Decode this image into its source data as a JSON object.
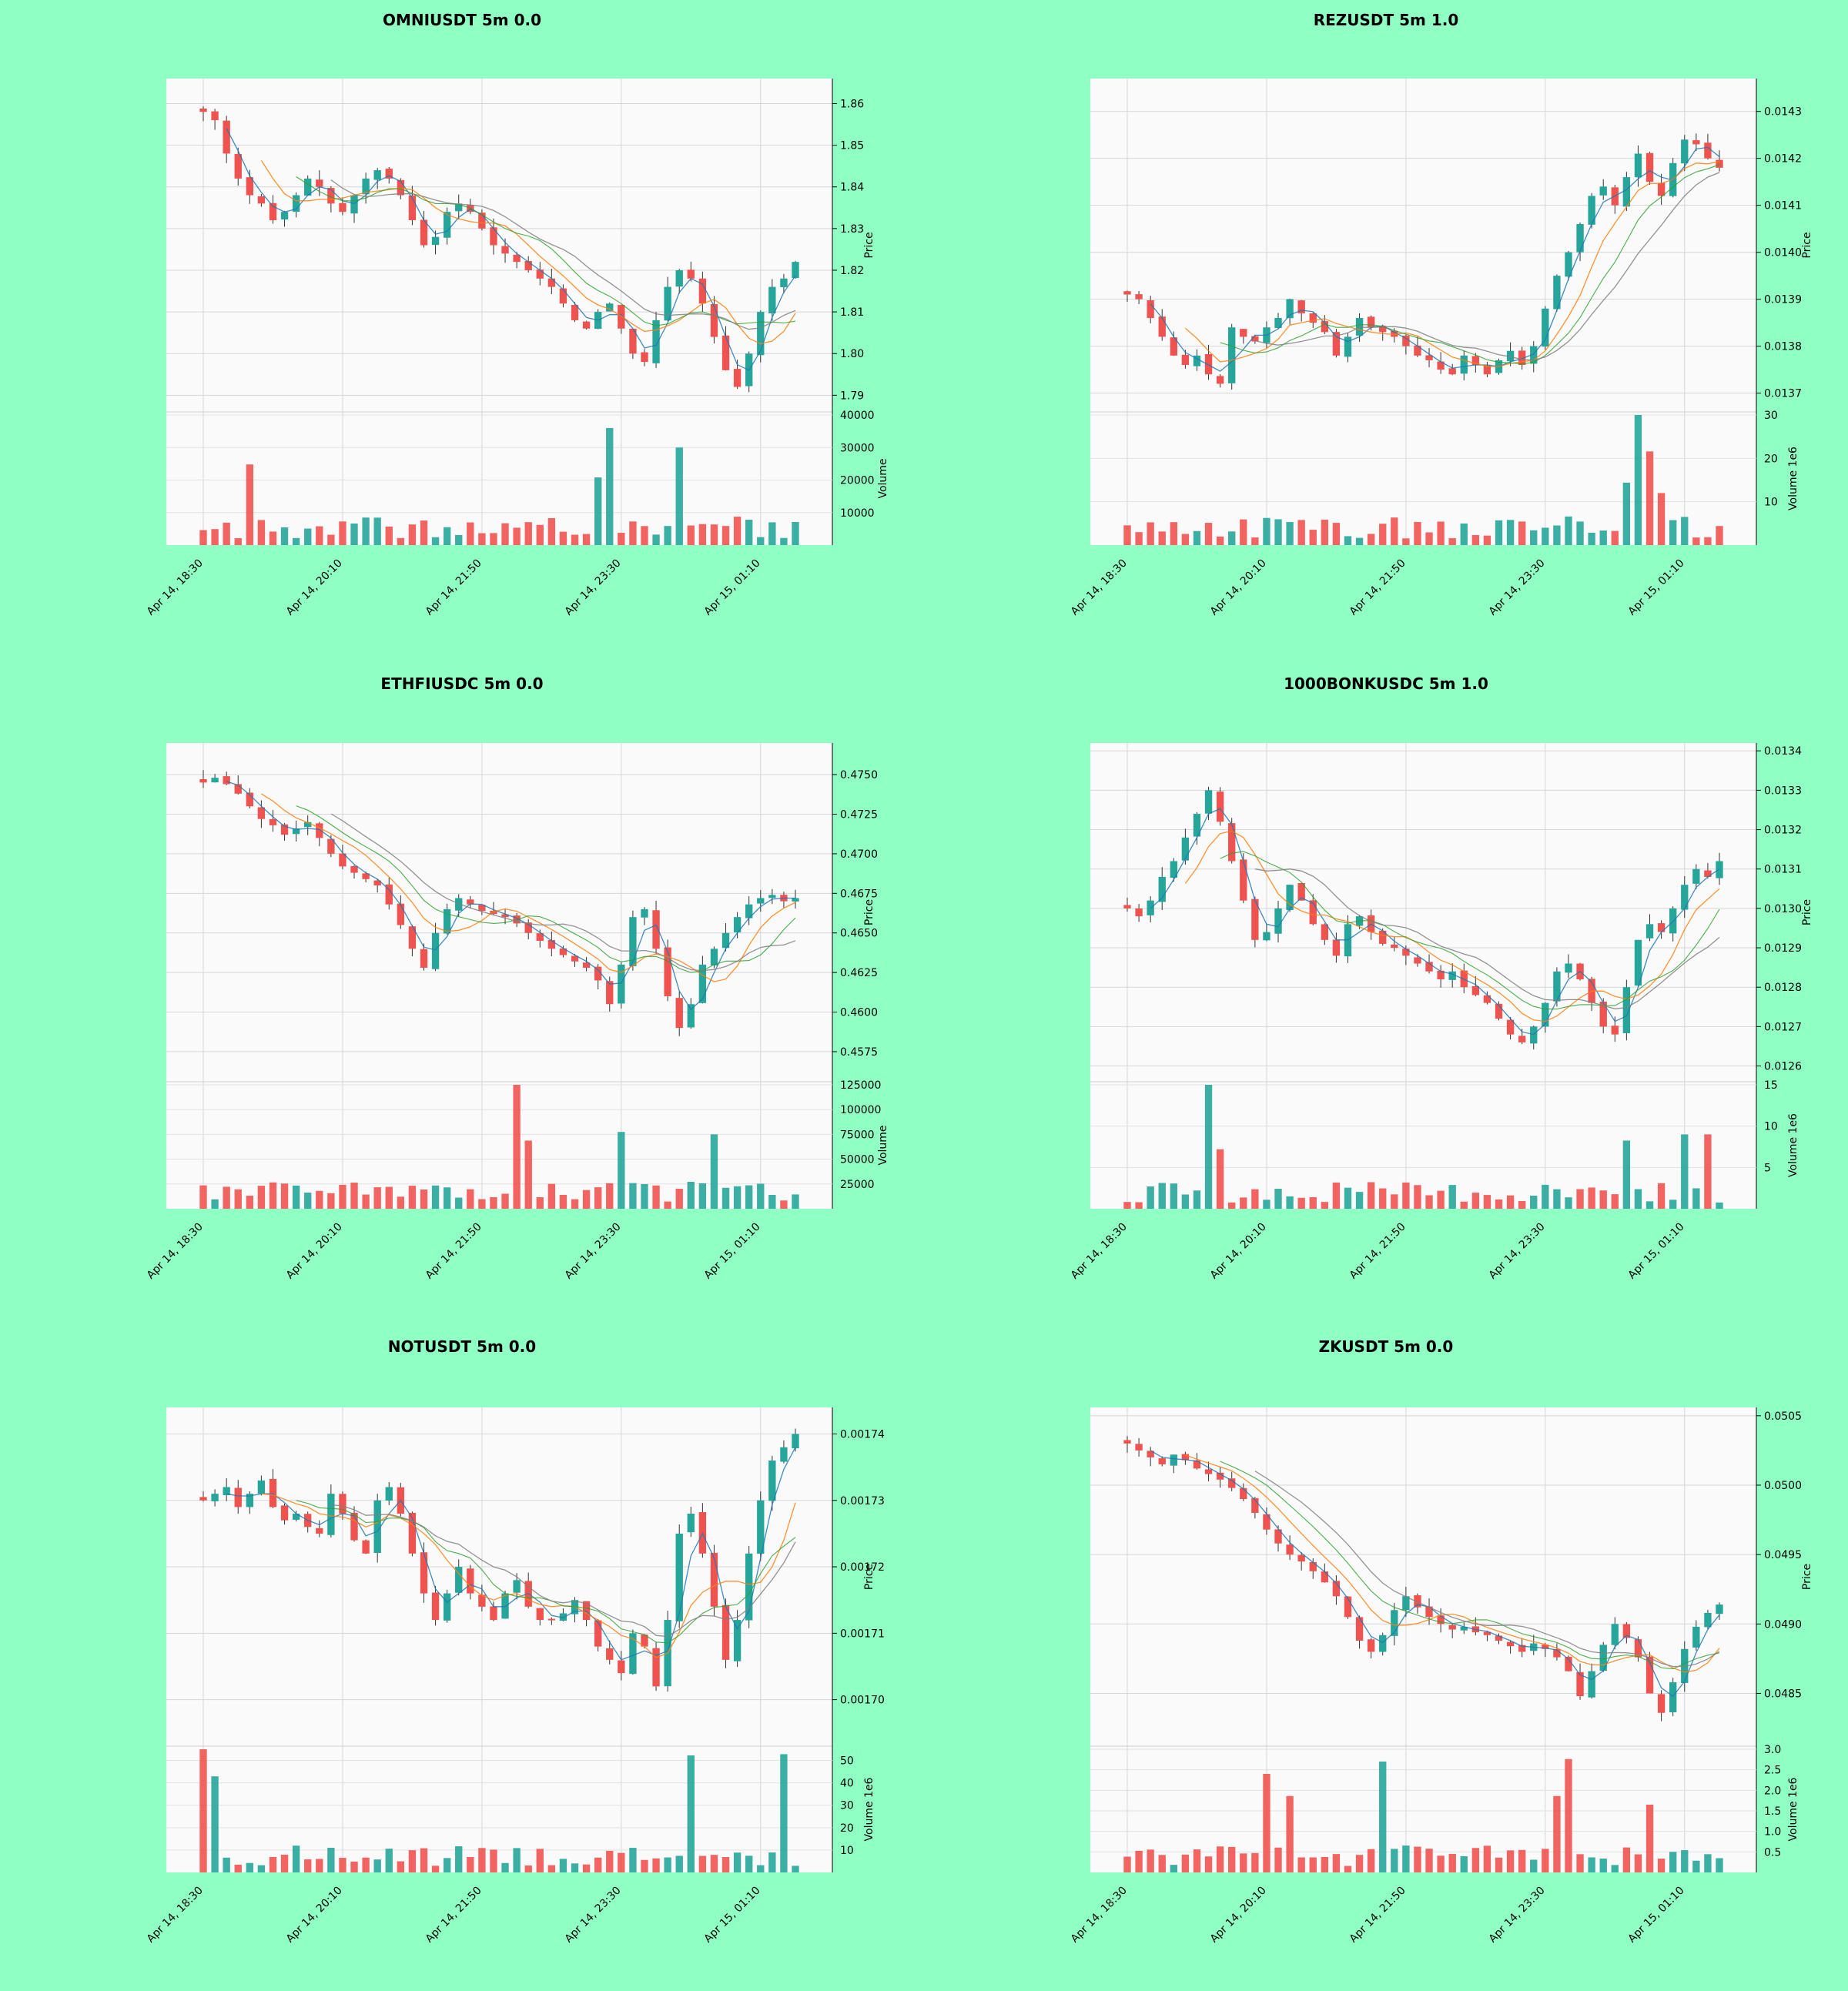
{
  "colors": {
    "background": "#8fffc4",
    "panel": "#fafafa",
    "up": "#26a69a",
    "down": "#ef5350",
    "ma_fast": "#1f77b4",
    "ma_mid": "#ff7f0e",
    "ma_slow": "#7f7f7f",
    "ma_green": "#2ca02c"
  },
  "x_ticks": [
    "Apr 14, 18:30",
    "Apr 14, 20:10",
    "Apr 14, 21:50",
    "Apr 14, 23:30",
    "Apr 15, 01:10"
  ],
  "price_axis_label": "Price",
  "chart_data": [
    {
      "type": "candlestick",
      "title": "OMNIUSDT 5m 0.0",
      "price_ticks": [
        "1.86",
        "1.85",
        "1.84",
        "1.83",
        "1.82",
        "1.81",
        "1.80",
        "1.79"
      ],
      "price_range": [
        1.786,
        1.866
      ],
      "price_path": [
        1.858,
        1.856,
        1.848,
        1.842,
        1.838,
        1.836,
        1.832,
        1.834,
        1.838,
        1.842,
        1.84,
        1.836,
        1.834,
        1.838,
        1.842,
        1.844,
        1.842,
        1.838,
        1.832,
        1.826,
        1.828,
        1.834,
        1.836,
        1.834,
        1.83,
        1.826,
        1.824,
        1.822,
        1.82,
        1.818,
        1.816,
        1.812,
        1.808,
        1.806,
        1.81,
        1.812,
        1.806,
        1.8,
        1.798,
        1.808,
        1.816,
        1.82,
        1.818,
        1.812,
        1.804,
        1.796,
        1.792,
        1.8,
        1.81,
        1.816,
        1.818,
        1.822
      ],
      "volume_label": "Volume",
      "volume_ticks": [
        "40000",
        "30000",
        "20000",
        "10000"
      ],
      "volume_max": 40000,
      "volume_spikes": [
        [
          4,
          0.62
        ],
        [
          35,
          0.9
        ],
        [
          34,
          0.52
        ],
        [
          41,
          0.75
        ]
      ]
    },
    {
      "type": "candlestick",
      "title": "REZUSDT 5m 1.0",
      "price_ticks": [
        "0.0143",
        "0.0142",
        "0.0141",
        "0.0140",
        "0.0139",
        "0.0138",
        "0.0137"
      ],
      "price_range": [
        0.01366,
        0.01437
      ],
      "price_path": [
        0.01391,
        0.0139,
        0.01386,
        0.01382,
        0.01378,
        0.01376,
        0.01378,
        0.01374,
        0.01372,
        0.01384,
        0.01382,
        0.01381,
        0.01384,
        0.01386,
        0.0139,
        0.01387,
        0.01385,
        0.01383,
        0.01378,
        0.01382,
        0.01386,
        0.01384,
        0.01383,
        0.01382,
        0.0138,
        0.01378,
        0.01377,
        0.01375,
        0.01374,
        0.01378,
        0.01376,
        0.01374,
        0.01377,
        0.01379,
        0.01376,
        0.0138,
        0.01388,
        0.01395,
        0.014,
        0.01406,
        0.01412,
        0.01414,
        0.0141,
        0.01416,
        0.01421,
        0.01415,
        0.01412,
        0.01419,
        0.01424,
        0.01423,
        0.0142,
        0.01418
      ],
      "volume_label": "Volume  1e6",
      "volume_ticks": [
        "30",
        "20",
        "10"
      ],
      "volume_max": 30,
      "volume_spikes": [
        [
          44,
          1.0
        ],
        [
          45,
          0.72
        ],
        [
          43,
          0.48
        ],
        [
          46,
          0.4
        ]
      ]
    },
    {
      "type": "candlestick",
      "title": "ETHFIUSDC 5m 0.0",
      "price_ticks": [
        "0.4750",
        "0.4725",
        "0.4700",
        "0.4675",
        "0.4650",
        "0.4625",
        "0.4600",
        "0.4575"
      ],
      "price_range": [
        0.4556,
        0.477
      ],
      "price_path": [
        0.4745,
        0.4748,
        0.4744,
        0.4738,
        0.473,
        0.4722,
        0.4718,
        0.4712,
        0.4716,
        0.472,
        0.471,
        0.47,
        0.4692,
        0.4688,
        0.4684,
        0.468,
        0.4668,
        0.4655,
        0.464,
        0.4628,
        0.465,
        0.4665,
        0.4672,
        0.4668,
        0.4664,
        0.4662,
        0.466,
        0.4656,
        0.465,
        0.4645,
        0.464,
        0.4636,
        0.4632,
        0.4628,
        0.462,
        0.4605,
        0.463,
        0.466,
        0.4665,
        0.464,
        0.461,
        0.459,
        0.4605,
        0.463,
        0.464,
        0.465,
        0.466,
        0.4668,
        0.4672,
        0.4674,
        0.467,
        0.4672
      ],
      "volume_label": "Volume",
      "volume_ticks": [
        "125000",
        "100000",
        "75000",
        "50000",
        "25000"
      ],
      "volume_max": 125000,
      "volume_spikes": [
        [
          27,
          1.0
        ],
        [
          28,
          0.55
        ],
        [
          36,
          0.62
        ],
        [
          44,
          0.6
        ]
      ]
    },
    {
      "type": "candlestick",
      "title": "1000BONKUSDC 5m 1.0",
      "price_ticks": [
        "0.0134",
        "0.0133",
        "0.0132",
        "0.0131",
        "0.0130",
        "0.0129",
        "0.0128",
        "0.0127",
        "0.0126"
      ],
      "price_range": [
        0.01256,
        0.01342
      ],
      "price_path": [
        0.013,
        0.01298,
        0.01302,
        0.01308,
        0.01312,
        0.01318,
        0.01324,
        0.0133,
        0.01322,
        0.01312,
        0.01302,
        0.01292,
        0.01294,
        0.013,
        0.01306,
        0.01302,
        0.01296,
        0.01292,
        0.01288,
        0.01296,
        0.01298,
        0.01294,
        0.01291,
        0.0129,
        0.01288,
        0.01286,
        0.01284,
        0.01282,
        0.01284,
        0.0128,
        0.01278,
        0.01276,
        0.01272,
        0.01268,
        0.01266,
        0.0127,
        0.01276,
        0.01284,
        0.01286,
        0.01282,
        0.01276,
        0.0127,
        0.01268,
        0.0128,
        0.01292,
        0.01296,
        0.01294,
        0.013,
        0.01306,
        0.0131,
        0.01308,
        0.01312
      ],
      "volume_label": "Volume  1e6",
      "volume_ticks": [
        "15",
        "10",
        "5"
      ],
      "volume_max": 15,
      "volume_spikes": [
        [
          7,
          1.0
        ],
        [
          8,
          0.48
        ],
        [
          43,
          0.55
        ],
        [
          48,
          0.6
        ],
        [
          50,
          0.6
        ]
      ]
    },
    {
      "type": "candlestick",
      "title": "NOTUSDT 5m 0.0",
      "price_ticks": [
        "0.00174",
        "0.00173",
        "0.00172",
        "0.00171",
        "0.00170"
      ],
      "price_range": [
        0.001693,
        0.001744
      ],
      "price_path": [
        0.00173,
        0.001731,
        0.001732,
        0.001729,
        0.001731,
        0.001733,
        0.001729,
        0.001727,
        0.001728,
        0.001726,
        0.001725,
        0.001731,
        0.001728,
        0.001724,
        0.001722,
        0.00173,
        0.001732,
        0.001728,
        0.001722,
        0.001716,
        0.001712,
        0.001716,
        0.00172,
        0.001716,
        0.001714,
        0.001712,
        0.001716,
        0.001718,
        0.001714,
        0.001712,
        0.001712,
        0.001713,
        0.001715,
        0.001712,
        0.001708,
        0.001706,
        0.001704,
        0.00171,
        0.001708,
        0.001702,
        0.001712,
        0.001725,
        0.001728,
        0.001722,
        0.001714,
        0.001706,
        0.001712,
        0.001722,
        0.00173,
        0.001736,
        0.001738,
        0.00174
      ],
      "volume_label": "Volume  1e6",
      "volume_ticks": [
        "50",
        "40",
        "30",
        "20",
        "10"
      ],
      "volume_max": 55,
      "volume_spikes": [
        [
          0,
          1.0
        ],
        [
          1,
          0.78
        ],
        [
          42,
          0.95
        ],
        [
          50,
          0.96
        ]
      ]
    },
    {
      "type": "candlestick",
      "title": "ZKUSDT 5m 0.0",
      "price_ticks": [
        "0.0505",
        "0.0500",
        "0.0495",
        "0.0490",
        "0.0485"
      ],
      "price_range": [
        0.04812,
        0.05056
      ],
      "price_path": [
        0.0503,
        0.05025,
        0.0502,
        0.05015,
        0.05022,
        0.05018,
        0.05012,
        0.05008,
        0.05004,
        0.04998,
        0.0499,
        0.0498,
        0.04968,
        0.04958,
        0.0495,
        0.04945,
        0.04938,
        0.0493,
        0.0492,
        0.04905,
        0.04888,
        0.0488,
        0.04892,
        0.0491,
        0.0492,
        0.04912,
        0.04905,
        0.049,
        0.04896,
        0.04898,
        0.04894,
        0.04892,
        0.04888,
        0.04884,
        0.0488,
        0.04886,
        0.04882,
        0.04876,
        0.04866,
        0.04848,
        0.04866,
        0.04885,
        0.049,
        0.0489,
        0.04876,
        0.0485,
        0.04836,
        0.04858,
        0.04882,
        0.04898,
        0.04908,
        0.04914
      ],
      "volume_label": "Volume  1e6",
      "volume_ticks": [
        "3.0",
        "2.5",
        "2.0",
        "1.5",
        "1.0",
        "0.5"
      ],
      "volume_max": 3.0,
      "volume_spikes": [
        [
          12,
          0.8
        ],
        [
          14,
          0.62
        ],
        [
          22,
          0.9
        ],
        [
          38,
          0.92
        ],
        [
          37,
          0.62
        ],
        [
          45,
          0.55
        ]
      ]
    }
  ]
}
